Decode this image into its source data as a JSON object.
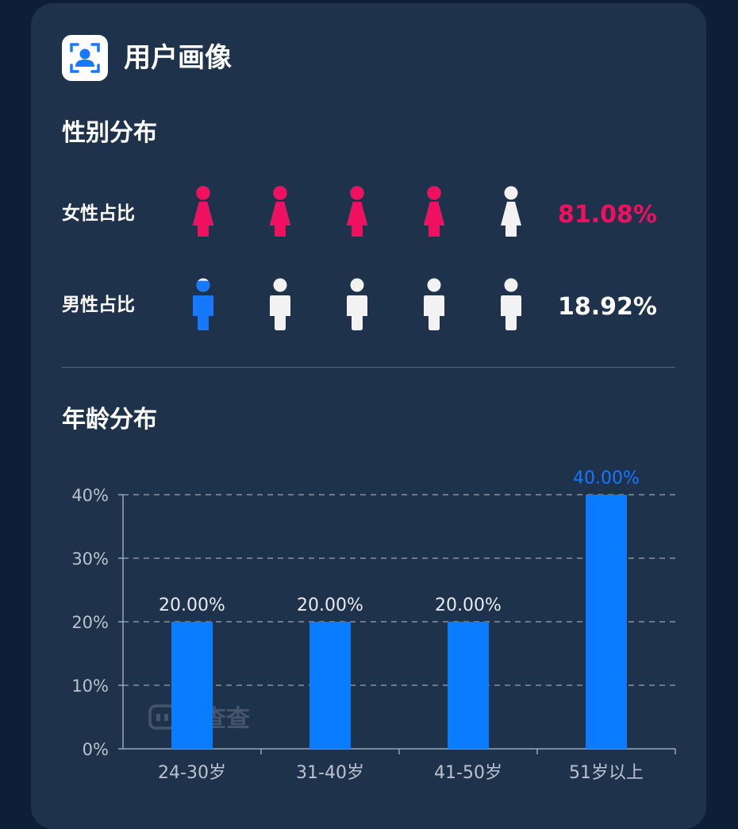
{
  "header": {
    "title": "用户画像",
    "icon": "user-portrait-icon",
    "icon_color": "#1677ff"
  },
  "gender": {
    "section_title": "性别分布",
    "female": {
      "label": "女性占比",
      "value_text": "81.08%",
      "value": 81.08,
      "color": "#f0105f",
      "icon": "female-person-icon"
    },
    "male": {
      "label": "男性占比",
      "value_text": "18.92%",
      "value": 18.92,
      "color": "#1677ff",
      "icon": "male-person-icon"
    },
    "empty_color": "#f2f2f2",
    "icons_per_row": 5
  },
  "age": {
    "section_title": "年龄分布"
  },
  "watermark": "抖查查",
  "chart_data": {
    "type": "bar",
    "title": "",
    "xlabel": "",
    "ylabel": "",
    "categories": [
      "24-30岁",
      "31-40岁",
      "41-50岁",
      "51岁以上"
    ],
    "values": [
      20,
      20,
      20,
      40
    ],
    "data_labels": [
      "20.00%",
      "20.00%",
      "20.00%",
      "40.00%"
    ],
    "ylim": [
      0,
      40
    ],
    "yticks": [
      "0%",
      "10%",
      "20%",
      "30%",
      "40%"
    ],
    "bar_color": "#0a7cff",
    "label_color_highlight": "#1677ff",
    "grid": true
  }
}
